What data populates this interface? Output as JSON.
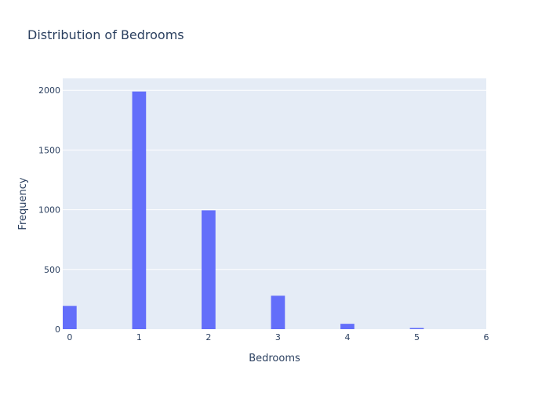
{
  "chart_data": {
    "type": "bar",
    "title": "Distribution of Bedrooms",
    "xlabel": "Bedrooms",
    "ylabel": "Frequency",
    "categories": [
      0,
      1,
      2,
      3,
      4,
      5
    ],
    "values": [
      195,
      1990,
      995,
      280,
      45,
      10
    ],
    "xlim": [
      0,
      6
    ],
    "ylim": [
      0,
      2100
    ],
    "x_ticks": [
      "0",
      "1",
      "2",
      "3",
      "4",
      "5",
      "6"
    ],
    "y_ticks": [
      "0",
      "500",
      "1000",
      "1500",
      "2000"
    ],
    "grid": true,
    "bar_color": "#636efa",
    "plot_bg": "#e5ecf6"
  }
}
